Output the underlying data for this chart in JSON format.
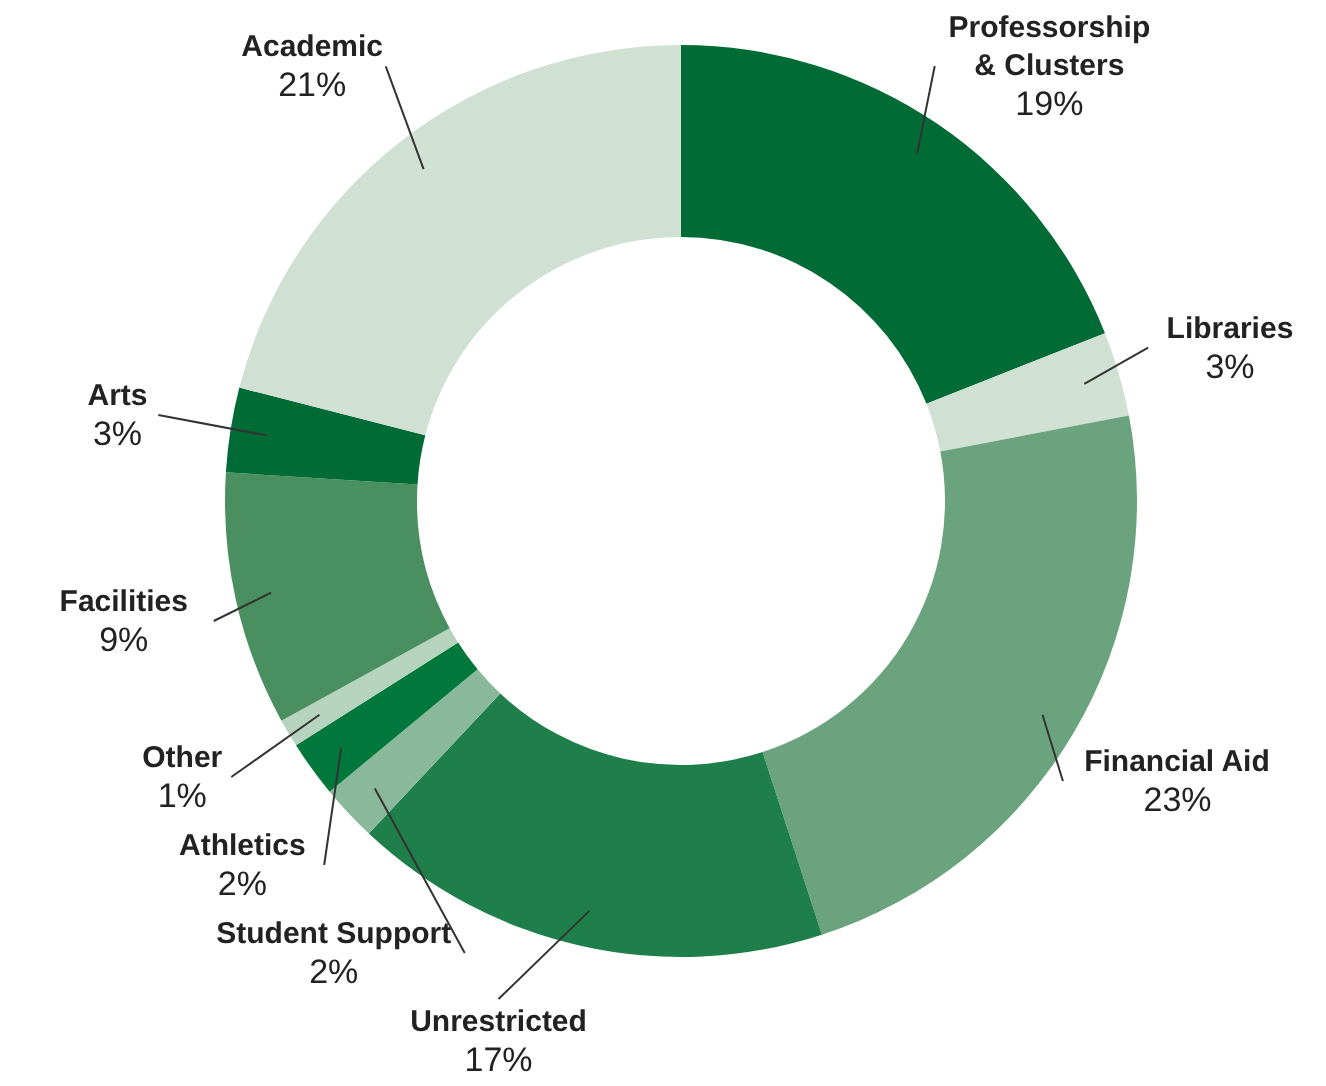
{
  "chart_data": {
    "type": "donut",
    "categories": [
      "Professorship\n& Clusters",
      "Libraries",
      "Financial Aid",
      "Unrestricted",
      "Student Support",
      "Athletics",
      "Other",
      "Facilities",
      "Arts",
      "Academic"
    ],
    "values": [
      19,
      3,
      23,
      17,
      2,
      2,
      1,
      9,
      3,
      21
    ],
    "value_labels": [
      "19%",
      "3%",
      "23%",
      "17%",
      "2%",
      "2%",
      "1%",
      "9%",
      "3%",
      "21%"
    ],
    "colors": [
      "#006b35",
      "#d0e0d3",
      "#6aa37d",
      "#1f7f4a",
      "#8ab89a",
      "#00783c",
      "#b6d3bd",
      "#4a8f5f",
      "#006b35",
      "#d0e0d3"
    ]
  }
}
